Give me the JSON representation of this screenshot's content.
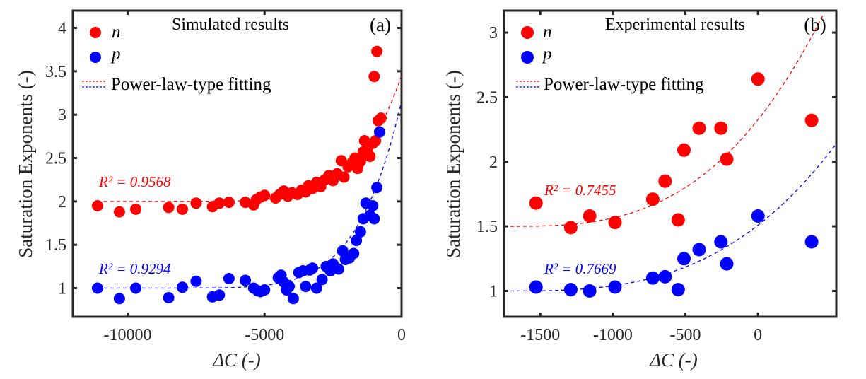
{
  "chart_data": [
    {
      "type": "scatter",
      "panel_label": "(a)",
      "title": "Simulated results",
      "xlabel": "ΔC (-)",
      "ylabel": "Saturation Exponents (-)",
      "xlim": [
        -12000,
        0
      ],
      "ylim": [
        0.67,
        4.2
      ],
      "xticks": [
        -10000,
        -5000,
        0
      ],
      "xtick_labels": [
        "-10000",
        "-5000",
        "0"
      ],
      "yticks": [
        1,
        1.5,
        2,
        2.5,
        3,
        3.5,
        4
      ],
      "ytick_labels": [
        "1",
        "1.5",
        "2",
        "2.5",
        "3",
        "3.5",
        "4"
      ],
      "grid": false,
      "legend": {
        "placement": "top-left",
        "entries": [
          "n",
          "p",
          "Power-law-type fitting"
        ]
      },
      "series": [
        {
          "name": "n",
          "color": "#ff0000",
          "x": [
            -11100,
            -10300,
            -9700,
            -8500,
            -8000,
            -7500,
            -6900,
            -6650,
            -6300,
            -5700,
            -5400,
            -5300,
            -5150,
            -5000,
            -4600,
            -4450,
            -4300,
            -4150,
            -4000,
            -3800,
            -3650,
            -3500,
            -3400,
            -3250,
            -3100,
            -2950,
            -2800,
            -2650,
            -2500,
            -2350,
            -2200,
            -2100,
            -1950,
            -1800,
            -1700,
            -1600,
            -1500,
            -1400,
            -1350,
            -1250,
            -1150,
            -1050,
            -950,
            -850,
            -750,
            -1000,
            -900
          ],
          "y": [
            1.95,
            1.88,
            1.91,
            1.93,
            1.91,
            1.98,
            1.94,
            1.98,
            1.99,
            1.99,
            1.96,
            2.02,
            2.05,
            2.07,
            2.04,
            2.08,
            2.12,
            2.06,
            2.1,
            2.08,
            2.13,
            2.11,
            2.18,
            2.15,
            2.22,
            2.17,
            2.25,
            2.3,
            2.24,
            2.32,
            2.47,
            2.28,
            2.4,
            2.45,
            2.5,
            2.38,
            2.46,
            2.57,
            2.7,
            2.6,
            2.52,
            2.67,
            2.7,
            2.93,
            2.96,
            3.44,
            3.73
          ]
        },
        {
          "name": "p",
          "color": "#0000ff",
          "x": [
            -11100,
            -10300,
            -9700,
            -8500,
            -8000,
            -7500,
            -6900,
            -6650,
            -6300,
            -5700,
            -5400,
            -5250,
            -5150,
            -5000,
            -4500,
            -4400,
            -4300,
            -4200,
            -4100,
            -3950,
            -3750,
            -3600,
            -3500,
            -3350,
            -3250,
            -3100,
            -2900,
            -2750,
            -2600,
            -2500,
            -2300,
            -2150,
            -2050,
            -1900,
            -1750,
            -1650,
            -1500,
            -1400,
            -1300,
            -1150,
            -1050,
            -1000,
            -900,
            -800
          ],
          "y": [
            1.0,
            0.88,
            1.0,
            0.89,
            1.01,
            1.08,
            0.9,
            0.92,
            1.11,
            1.09,
            1.0,
            0.97,
            0.96,
            0.98,
            1.12,
            1.15,
            1.07,
            0.98,
            1.02,
            0.88,
            1.18,
            1.2,
            1.02,
            1.21,
            1.23,
            1.0,
            1.1,
            1.25,
            1.2,
            1.28,
            1.22,
            1.43,
            1.33,
            1.35,
            1.4,
            1.55,
            1.65,
            1.8,
            1.98,
            1.84,
            1.95,
            1.8,
            2.16,
            2.8
          ]
        }
      ],
      "fits": [
        {
          "series": "n",
          "label": "R² = 0.9568",
          "r2": 0.9568,
          "color": "#ff0000",
          "baseline": 2.0,
          "x_range": [
            -11100,
            0
          ],
          "end_value": 3.45
        },
        {
          "series": "p",
          "label": "R² = 0.9294",
          "r2": 0.9294,
          "color": "#0000ff",
          "baseline": 1.0,
          "x_range": [
            -11100,
            0
          ],
          "end_value": 3.15
        }
      ]
    },
    {
      "type": "scatter",
      "panel_label": "(b)",
      "title": "Experimental results",
      "xlabel": "ΔC (-)",
      "ylabel": "Saturation Exponents (-)",
      "xlim": [
        -1750,
        540
      ],
      "ylim": [
        0.8,
        3.17
      ],
      "xticks": [
        -1500,
        -1000,
        -500,
        0
      ],
      "xtick_labels": [
        "-1500",
        "-1000",
        "-500",
        "0"
      ],
      "yticks": [
        1,
        1.5,
        2,
        2.5,
        3
      ],
      "ytick_labels": [
        "1",
        "1.5",
        "2",
        "2.5",
        "3"
      ],
      "grid": false,
      "legend": {
        "placement": "top-left",
        "entries": [
          "n",
          "p",
          "Power-law-type fitting"
        ]
      },
      "series": [
        {
          "name": "n",
          "color": "#ff0000",
          "x": [
            -1530,
            -1290,
            -1160,
            -985,
            -725,
            -640,
            -550,
            -510,
            -405,
            -255,
            -215,
            0,
            370
          ],
          "y": [
            1.68,
            1.49,
            1.58,
            1.53,
            1.71,
            1.85,
            1.55,
            2.09,
            2.26,
            2.26,
            2.02,
            2.64,
            2.32
          ]
        },
        {
          "name": "p",
          "color": "#0000ff",
          "x": [
            -1530,
            -1290,
            -1160,
            -985,
            -725,
            -640,
            -550,
            -510,
            -405,
            -255,
            -215,
            0,
            370
          ],
          "y": [
            1.03,
            1.01,
            1.0,
            1.03,
            1.1,
            1.11,
            1.01,
            1.25,
            1.32,
            1.38,
            1.21,
            1.58,
            1.38
          ]
        }
      ],
      "fits": [
        {
          "series": "n",
          "label": "R² = 0.7455",
          "r2": 0.7455,
          "color": "#ff0000",
          "baseline": 1.5,
          "x_range": [
            -1750,
            540
          ],
          "end_value": 3.35
        },
        {
          "series": "p",
          "label": "R² = 0.7669",
          "r2": 0.7669,
          "color": "#0000ff",
          "baseline": 1.0,
          "x_range": [
            -1750,
            540
          ],
          "end_value": 2.14
        }
      ]
    }
  ]
}
